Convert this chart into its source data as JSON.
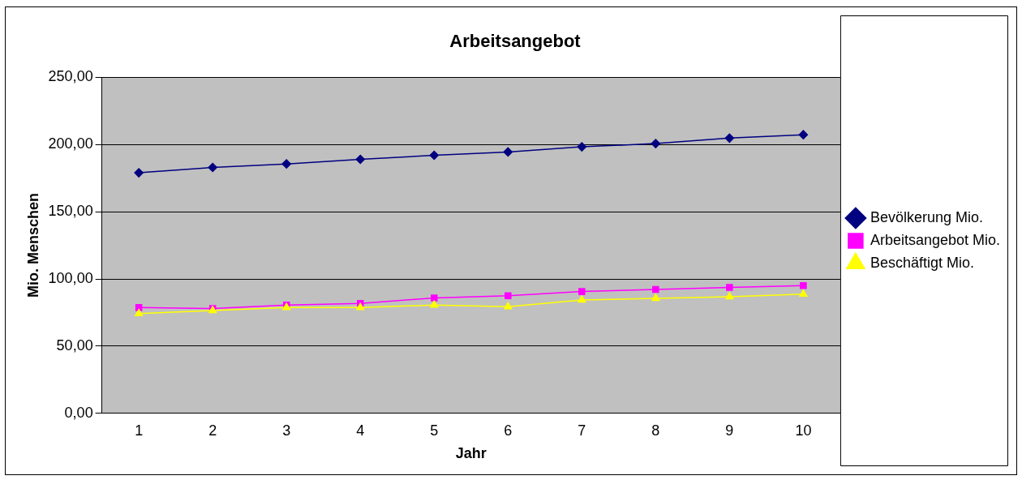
{
  "chart_data": {
    "type": "line",
    "title": "Arbeitsangebot",
    "xlabel": "Jahr",
    "ylabel": "Mio. Menschen",
    "categories": [
      "1",
      "2",
      "3",
      "4",
      "5",
      "6",
      "7",
      "8",
      "9",
      "10"
    ],
    "series": [
      {
        "name": "Bevölkerung Mio.",
        "color": "#000080",
        "marker": "diamond",
        "values": [
          179,
          183,
          185.6,
          189,
          192,
          194.5,
          198.3,
          200.7,
          204.8,
          207.3
        ]
      },
      {
        "name": "Arbeitsangebot Mio.",
        "color": "#ff00ff",
        "marker": "square",
        "values": [
          78.7,
          78,
          80.6,
          81.8,
          85.9,
          87.5,
          90.6,
          92.2,
          93.7,
          95
        ]
      },
      {
        "name": "Beschäftigt Mio.",
        "color": "#ffff00",
        "marker": "triangle",
        "values": [
          74.3,
          76.5,
          78.7,
          78.7,
          80.6,
          79.3,
          84.3,
          85.6,
          86.8,
          88.7
        ]
      }
    ],
    "ylim": [
      0,
      250
    ],
    "yticks": [
      {
        "value": 0,
        "label": "0,00"
      },
      {
        "value": 50,
        "label": "50,00"
      },
      {
        "value": 100,
        "label": "100,00"
      },
      {
        "value": 150,
        "label": "150,00"
      },
      {
        "value": 200,
        "label": "200,00"
      },
      {
        "value": 250,
        "label": "250,00"
      }
    ],
    "grid": "y",
    "legend": "right"
  }
}
